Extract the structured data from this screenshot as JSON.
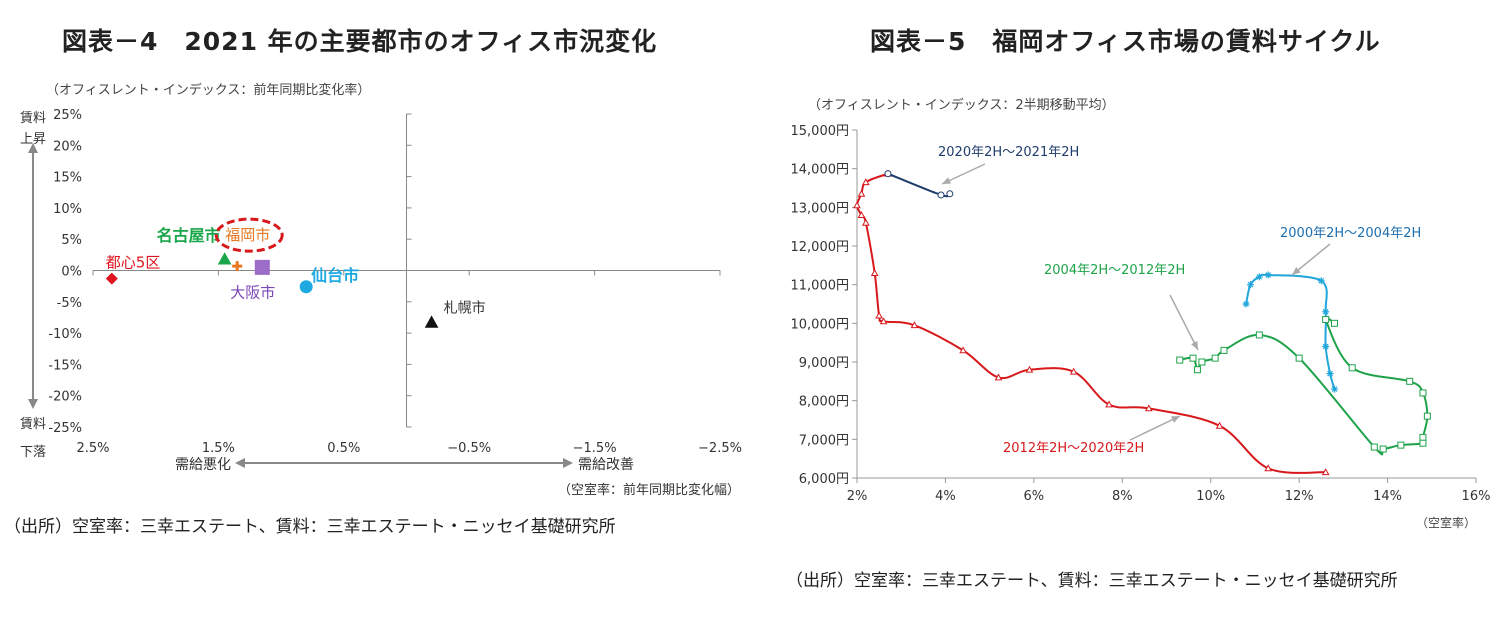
{
  "chart_data": [
    {
      "type": "scatter",
      "title": "図表－4　2021 年の主要都市のオフィス市況変化",
      "subtitle": "（オフィスレント・インデックス：前年同期比変化率）",
      "x_caption": "（空室率：前年同期比変化幅）",
      "y_top_label": [
        "賃料",
        "上昇"
      ],
      "y_bottom_label": [
        "賃料",
        "下落"
      ],
      "x_left_label": "需給悪化",
      "x_right_label": "需給改善",
      "xlim": [
        2.5,
        -2.5
      ],
      "ylim": [
        -25,
        25
      ],
      "x_ticks": [
        2.5,
        1.5,
        0.5,
        -0.5,
        -1.5,
        -2.5
      ],
      "x_tick_labels": [
        "2.5%",
        "1.5%",
        "0.5%",
        "−0.5%",
        "−1.5%",
        "−2.5%"
      ],
      "y_ticks": [
        25,
        20,
        15,
        10,
        5,
        0,
        -5,
        -10,
        -15,
        -20,
        -25
      ],
      "y_tick_labels": [
        "25%",
        "20%",
        "15%",
        "10%",
        "5%",
        "0%",
        "-5%",
        "-10%",
        "-15%",
        "-20%",
        "-25%"
      ],
      "points": [
        {
          "label": "都心5区",
          "x": 2.35,
          "y": -1.3,
          "marker": "diamond",
          "color": "#e0141e"
        },
        {
          "label": "名古屋市",
          "x": 1.45,
          "y": 1.8,
          "marker": "triangle",
          "color": "#1aa64a"
        },
        {
          "label": "福岡市",
          "x": 1.35,
          "y": 0.7,
          "marker": "plus",
          "color": "#e87722",
          "highlight": true
        },
        {
          "label": "大阪市",
          "x": 1.15,
          "y": 0.5,
          "marker": "square",
          "color": "#9b6cc8"
        },
        {
          "label": "仙台市",
          "x": 0.8,
          "y": -2.6,
          "marker": "circle",
          "color": "#1ea9e1"
        },
        {
          "label": "札幌市",
          "x": -0.2,
          "y": -8.3,
          "marker": "triangle",
          "color": "#111111"
        }
      ]
    },
    {
      "type": "line",
      "title": "図表－5　福岡オフィス市場の賃料サイクル",
      "subtitle": "（オフィスレント・インデックス：2半期移動平均）",
      "x_caption": "（空室率）",
      "xlim": [
        2,
        16
      ],
      "ylim": [
        6000,
        15000
      ],
      "x_ticks": [
        2,
        4,
        6,
        8,
        10,
        12,
        14,
        16
      ],
      "x_tick_labels": [
        "2%",
        "4%",
        "6%",
        "8%",
        "10%",
        "12%",
        "14%",
        "16%"
      ],
      "y_ticks": [
        6000,
        7000,
        8000,
        9000,
        10000,
        11000,
        12000,
        13000,
        14000,
        15000
      ],
      "y_tick_labels": [
        "6,000円",
        "7,000円",
        "8,000円",
        "9,000円",
        "10,000円",
        "11,000円",
        "12,000円",
        "13,000円",
        "14,000円",
        "15,000円"
      ],
      "series": [
        {
          "name": "2000年2H～2004年2H",
          "color": "#21a6dc",
          "marker": "star",
          "x": [
            10.8,
            10.9,
            11.1,
            11.3,
            12.5,
            12.6,
            12.6,
            12.7,
            12.8
          ],
          "y": [
            10500,
            11000,
            11200,
            11250,
            11100,
            10300,
            9400,
            8700,
            8300
          ]
        },
        {
          "name": "2004年2H～2012年2H",
          "color": "#1ea34a",
          "marker": "square",
          "x": [
            12.8,
            12.6,
            13.2,
            14.5,
            14.8,
            14.9,
            14.8,
            14.8,
            14.3,
            13.9,
            13.7,
            12.0,
            11.1,
            10.3,
            10.1,
            9.8,
            9.7,
            9.6,
            9.3
          ],
          "y": [
            10000,
            10100,
            8850,
            8500,
            8200,
            7600,
            7050,
            6900,
            6850,
            6750,
            6800,
            9100,
            9700,
            9300,
            9100,
            9000,
            8800,
            9100,
            9050
          ]
        },
        {
          "name": "2012年2H～2020年2H",
          "color": "#d7191c",
          "marker": "triangle",
          "x": [
            12.6,
            11.3,
            10.2,
            8.6,
            7.7,
            6.9,
            5.9,
            5.2,
            4.4,
            3.3,
            2.6,
            2.5,
            2.4,
            2.2,
            2.1,
            2.0,
            2.1,
            2.2,
            2.7
          ],
          "y": [
            6150,
            6250,
            7350,
            7800,
            7900,
            8750,
            8800,
            8600,
            9300,
            9950,
            10050,
            10200,
            11300,
            12600,
            12800,
            13050,
            13350,
            13650,
            13870
          ]
        },
        {
          "name": "2020年2H～2021年2H",
          "color": "#1f3d6b",
          "marker": "circle",
          "x": [
            2.7,
            3.9,
            4.1
          ],
          "y": [
            13870,
            13320,
            13350
          ]
        }
      ],
      "annotations": [
        {
          "text": "2020年2H～2021年2H",
          "series": 3
        },
        {
          "text": "2000年2H～2004年2H",
          "series": 0
        },
        {
          "text": "2004年2H～2012年2H",
          "series": 1
        },
        {
          "text": "2012年2H～2020年2H",
          "series": 2
        }
      ]
    }
  ],
  "sources": {
    "left": "（出所）空室率：三幸エステート、賃料：三幸エステート・ニッセイ基礎研究所",
    "right": "（出所）空室率：三幸エステート、賃料：三幸エステート・ニッセイ基礎研究所"
  }
}
